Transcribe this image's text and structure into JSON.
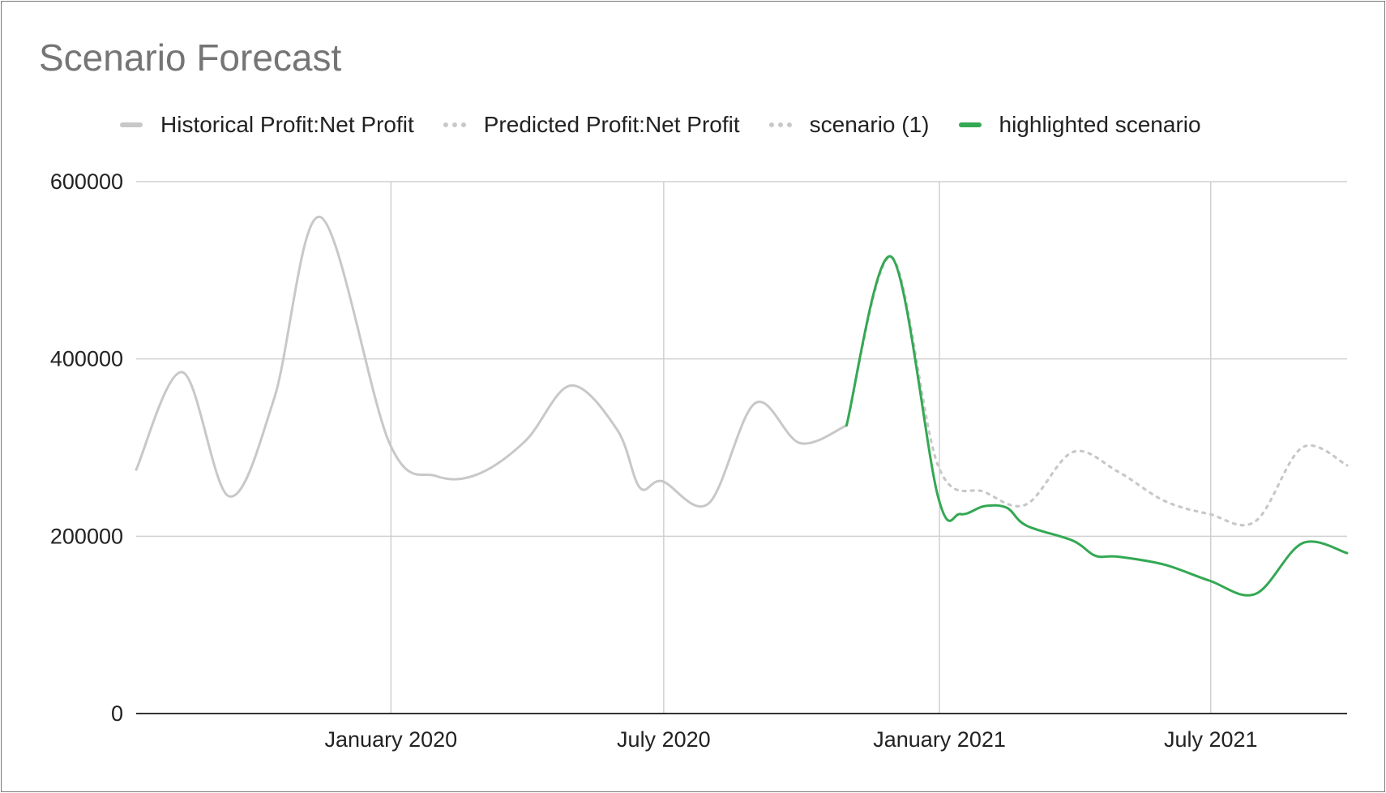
{
  "chart_data": {
    "type": "line",
    "title": "Scenario Forecast",
    "xlabel": "",
    "ylabel": "",
    "ylim": [
      0,
      600000
    ],
    "y_ticks": [
      "600000",
      "400000",
      "200000",
      "0"
    ],
    "x_tick_labels": [
      {
        "label": "January 2020",
        "date": "2020-01-01"
      },
      {
        "label": "July 2020",
        "date": "2020-07-01"
      },
      {
        "label": "January 2021",
        "date": "2021-01-01"
      },
      {
        "label": "July 2021",
        "date": "2021-07-01"
      }
    ],
    "grid": true,
    "legend_position": "top",
    "series": [
      {
        "name": "Historical Profit:Net Profit",
        "color": "#c8c8c8",
        "style": "solid",
        "points": [
          [
            "2019-07-15",
            275000
          ],
          [
            "2019-08-15",
            385000
          ],
          [
            "2019-09-15",
            245000
          ],
          [
            "2019-10-15",
            355000
          ],
          [
            "2019-11-15",
            560000
          ],
          [
            "2019-12-31",
            305000
          ],
          [
            "2020-01-31",
            268000
          ],
          [
            "2020-02-28",
            270000
          ],
          [
            "2020-03-31",
            308000
          ],
          [
            "2020-04-30",
            370000
          ],
          [
            "2020-05-31",
            320000
          ],
          [
            "2020-06-15",
            255000
          ],
          [
            "2020-06-30",
            262000
          ],
          [
            "2020-07-31",
            237000
          ],
          [
            "2020-08-31",
            350000
          ],
          [
            "2020-09-30",
            305000
          ],
          [
            "2020-10-31",
            325000
          ]
        ]
      },
      {
        "name": "Predicted Profit:Net Profit",
        "color": "#c8c8c8",
        "style": "dotted",
        "points": [
          [
            "2020-10-31",
            325000
          ],
          [
            "2020-11-30",
            515000
          ],
          [
            "2020-12-31",
            280000
          ],
          [
            "2021-01-31",
            250000
          ],
          [
            "2021-02-28",
            236000
          ],
          [
            "2021-03-31",
            295000
          ],
          [
            "2021-04-30",
            273000
          ],
          [
            "2021-05-31",
            240000
          ],
          [
            "2021-06-30",
            225000
          ],
          [
            "2021-07-31",
            217000
          ],
          [
            "2021-08-31",
            300000
          ],
          [
            "2021-09-30",
            280000
          ]
        ]
      },
      {
        "name": "scenario (1)",
        "color": "#c8c8c8",
        "style": "dotted",
        "points": [
          [
            "2020-10-31",
            325000
          ],
          [
            "2020-11-30",
            515000
          ],
          [
            "2020-12-31",
            280000
          ],
          [
            "2021-01-31",
            250000
          ],
          [
            "2021-02-28",
            236000
          ],
          [
            "2021-03-31",
            295000
          ],
          [
            "2021-04-30",
            273000
          ],
          [
            "2021-05-31",
            240000
          ],
          [
            "2021-06-30",
            225000
          ],
          [
            "2021-07-31",
            217000
          ],
          [
            "2021-08-31",
            300000
          ],
          [
            "2021-09-30",
            280000
          ]
        ]
      },
      {
        "name": "highlighted scenario",
        "color": "#34a853",
        "style": "solid",
        "points": [
          [
            "2020-10-31",
            325000
          ],
          [
            "2020-11-30",
            515000
          ],
          [
            "2020-12-31",
            245000
          ],
          [
            "2021-01-15",
            225000
          ],
          [
            "2021-01-31",
            234000
          ],
          [
            "2021-02-15",
            232000
          ],
          [
            "2021-02-28",
            212000
          ],
          [
            "2021-03-31",
            195000
          ],
          [
            "2021-04-15",
            178000
          ],
          [
            "2021-04-30",
            177000
          ],
          [
            "2021-05-31",
            168000
          ],
          [
            "2021-06-30",
            150000
          ],
          [
            "2021-07-31",
            135000
          ],
          [
            "2021-08-31",
            192000
          ],
          [
            "2021-09-30",
            181000
          ]
        ]
      }
    ]
  }
}
